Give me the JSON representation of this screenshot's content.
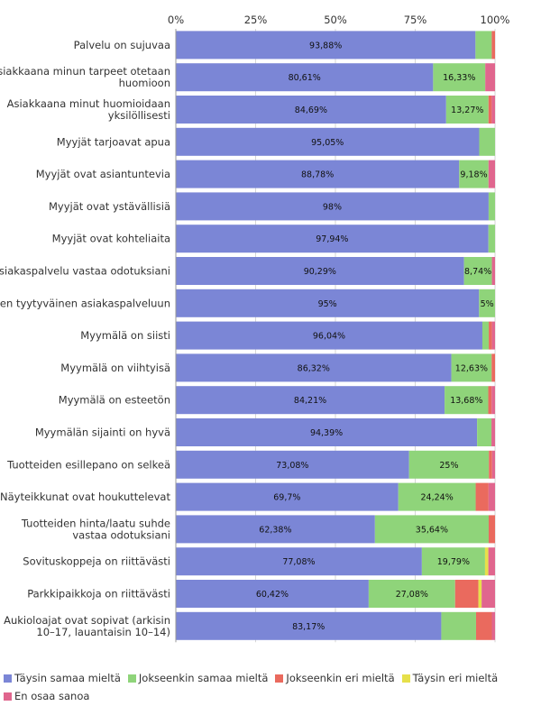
{
  "chart_data": {
    "type": "bar",
    "orientation": "horizontal",
    "stacked": true,
    "xlim": [
      0,
      100
    ],
    "x_ticks": [
      "0%",
      "25%",
      "50%",
      "75%",
      "100%"
    ],
    "categories": [
      [
        "Palvelu on sujuvaa"
      ],
      [
        "Asiakkaana minun tarpeet otetaan",
        "huomioon"
      ],
      [
        "Asiakkaana minut huomioidaan",
        "yksilöllisesti"
      ],
      [
        "Myyjät tarjoavat apua"
      ],
      [
        "Myyjät ovat asiantuntevia"
      ],
      [
        "Myyjät ovat ystävällisiä"
      ],
      [
        "Myyjät ovat kohteliaita"
      ],
      [
        "Asiakaspalvelu vastaa odotuksiani"
      ],
      [
        "Olen tyytyväinen asiakaspalveluun"
      ],
      [
        "Myymälä on siisti"
      ],
      [
        "Myymälä on viihtyisä"
      ],
      [
        "Myymälä on esteetön"
      ],
      [
        "Myymälän sijainti on hyvä"
      ],
      [
        "Tuotteiden esillepano on selkeä"
      ],
      [
        "Näyteikkunat ovat houkuttelevat"
      ],
      [
        "Tuotteiden hinta/laatu suhde",
        "vastaa odotuksiani"
      ],
      [
        "Sovituskoppeja on riittävästi"
      ],
      [
        "Parkkipaikkoja on riittävästi"
      ],
      [
        "Aukioloajat ovat sopivat (arkisin",
        "10–17, lauantaisin 10–14)"
      ]
    ],
    "series": [
      {
        "name": "Täysin samaa mieltä",
        "color": "#7b86d6",
        "values": [
          93.88,
          80.61,
          84.69,
          95.05,
          88.78,
          98,
          97.94,
          90.29,
          95,
          96.04,
          86.32,
          84.21,
          94.39,
          73.08,
          69.7,
          62.38,
          77.08,
          60.42,
          83.17
        ],
        "labels": [
          "93,88%",
          "80,61%",
          "84,69%",
          "95,05%",
          "88,78%",
          "98%",
          "97,94%",
          "90,29%",
          "95%",
          "96,04%",
          "86,32%",
          "84,21%",
          "94,39%",
          "73,08%",
          "69,7%",
          "62,38%",
          "77,08%",
          "60,42%",
          "83,17%"
        ]
      },
      {
        "name": "Jokseenkin samaa mieltä",
        "color": "#8fd47a",
        "values": [
          5.1,
          16.33,
          13.27,
          4.95,
          9.18,
          2,
          2.06,
          8.74,
          5,
          2,
          12.63,
          13.68,
          4.5,
          25,
          24.24,
          35.64,
          19.79,
          27.08,
          10.89
        ],
        "labels": [
          "",
          "16,33%",
          "13,27%",
          "",
          "9,18%",
          "",
          "",
          "8,74%",
          "5%",
          "",
          "12,63%",
          "13,68%",
          "",
          "25%",
          "24,24%",
          "35,64%",
          "19,79%",
          "27,08%",
          ""
        ]
      },
      {
        "name": "Jokseenkin eri mieltä",
        "color": "#ea6a5e",
        "values": [
          1.02,
          0,
          1.02,
          0,
          0,
          0,
          0,
          0,
          0,
          1,
          1.05,
          1.05,
          0,
          1,
          4.04,
          1.98,
          0,
          7.3,
          4.95
        ],
        "labels": [
          "",
          "",
          "",
          "",
          "",
          "",
          "",
          "",
          "",
          "",
          "",
          "",
          "",
          "",
          "",
          "",
          "",
          "",
          ""
        ]
      },
      {
        "name": "Täysin eri mieltä",
        "color": "#e6e04a",
        "values": [
          0,
          0,
          0,
          0,
          0,
          0,
          0,
          0,
          0,
          0,
          0,
          0,
          0,
          0,
          0,
          0,
          1.04,
          1,
          0
        ],
        "labels": [
          "",
          "",
          "",
          "",
          "",
          "",
          "",
          "",
          "",
          "",
          "",
          "",
          "",
          "",
          "",
          "",
          "",
          "",
          ""
        ]
      },
      {
        "name": "En osaa sanoa",
        "color": "#e0668e",
        "values": [
          0,
          3.06,
          1.02,
          0,
          2.04,
          0,
          0,
          0.97,
          0,
          0.96,
          0,
          1.06,
          1.11,
          0.92,
          2.02,
          0,
          2.09,
          4.2,
          1
        ],
        "labels": [
          "",
          "",
          "",
          "",
          "",
          "",
          "",
          "",
          "",
          "",
          "",
          "",
          "",
          "",
          "",
          "",
          "",
          "",
          ""
        ]
      }
    ]
  }
}
